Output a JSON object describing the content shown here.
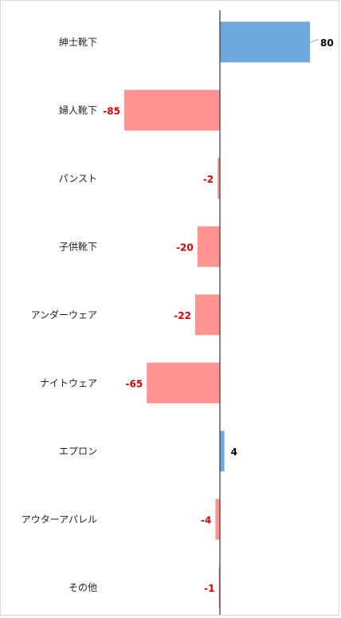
{
  "chart_data": {
    "type": "bar",
    "orientation": "horizontal",
    "categories": [
      "紳士靴下",
      "婦人靴下",
      "パンスト",
      "子供靴下",
      "アンダーウェア",
      "ナイトウェア",
      "エプロン",
      "アウターアパレル",
      "その他"
    ],
    "values": [
      80,
      -85,
      -2,
      -20,
      -22,
      -65,
      4,
      -4,
      -1
    ],
    "value_labels": [
      "80",
      "-85",
      "-2",
      "-20",
      "-22",
      "-65",
      "4",
      "-4",
      "-1"
    ],
    "xlim": [
      -100,
      100
    ],
    "grid": false,
    "legend": "none",
    "colors": {
      "positive_bar": "#6fa8dc",
      "negative_bar": "#ff9490",
      "positive_label": "#000000",
      "negative_label": "#e00000",
      "axis": "#333333",
      "leader": "#a6a6a6"
    }
  }
}
